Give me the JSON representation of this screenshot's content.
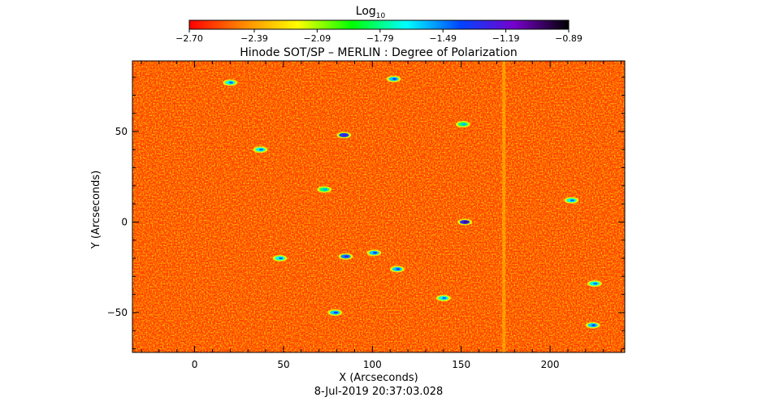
{
  "chart_data": {
    "type": "heatmap",
    "title": "Hinode SOT/SP – MERLIN : Degree of Polarization",
    "subtitle": "8-Jul-2019 20:37:03.028",
    "xlabel": "X (Arcseconds)",
    "ylabel": "Y (Arcseconds)",
    "xlim": [
      -35,
      242
    ],
    "ylim": [
      -72,
      89
    ],
    "x_ticks": [
      0,
      50,
      100,
      150,
      200
    ],
    "y_ticks": [
      -50,
      0,
      50
    ],
    "x_tick_labels": [
      "0",
      "50",
      "100",
      "150",
      "200"
    ],
    "y_tick_labels": [
      "−50",
      "0",
      "50"
    ],
    "colorbar": {
      "label_base": "Log",
      "label_sub": "10",
      "ticks": [
        -2.7,
        -2.39,
        -2.09,
        -1.79,
        -1.49,
        -1.19,
        -0.89
      ],
      "tick_labels": [
        "−2.70",
        "−2.39",
        "−2.09",
        "−1.79",
        "−1.49",
        "−1.19",
        "−0.89"
      ],
      "range": [
        -2.7,
        -0.89
      ],
      "colormap": [
        "#ff0000",
        "#ff8800",
        "#ffff00",
        "#00ff00",
        "#00ffff",
        "#0044ff",
        "#7700cc",
        "#000000"
      ]
    },
    "background_level": -2.55,
    "stripe": {
      "x": 174,
      "level": -2.3
    },
    "features": [
      {
        "x": 84,
        "y": 48,
        "level": -1.4
      },
      {
        "x": 112,
        "y": 79,
        "level": -1.6
      },
      {
        "x": 20,
        "y": 77,
        "level": -1.7
      },
      {
        "x": 37,
        "y": 40,
        "level": -1.7
      },
      {
        "x": 85,
        "y": -19,
        "level": -1.5
      },
      {
        "x": 101,
        "y": -17,
        "level": -1.6
      },
      {
        "x": 114,
        "y": -26,
        "level": -1.6
      },
      {
        "x": 152,
        "y": 0,
        "level": -1.3
      },
      {
        "x": 79,
        "y": -50,
        "level": -1.6
      },
      {
        "x": 140,
        "y": -42,
        "level": -1.7
      },
      {
        "x": 212,
        "y": 12,
        "level": -1.7
      },
      {
        "x": 224,
        "y": -57,
        "level": -1.6
      },
      {
        "x": 225,
        "y": -34,
        "level": -1.7
      },
      {
        "x": 48,
        "y": -20,
        "level": -1.7
      },
      {
        "x": 73,
        "y": 18,
        "level": -1.8
      },
      {
        "x": 151,
        "y": 54,
        "level": -1.8
      }
    ]
  }
}
